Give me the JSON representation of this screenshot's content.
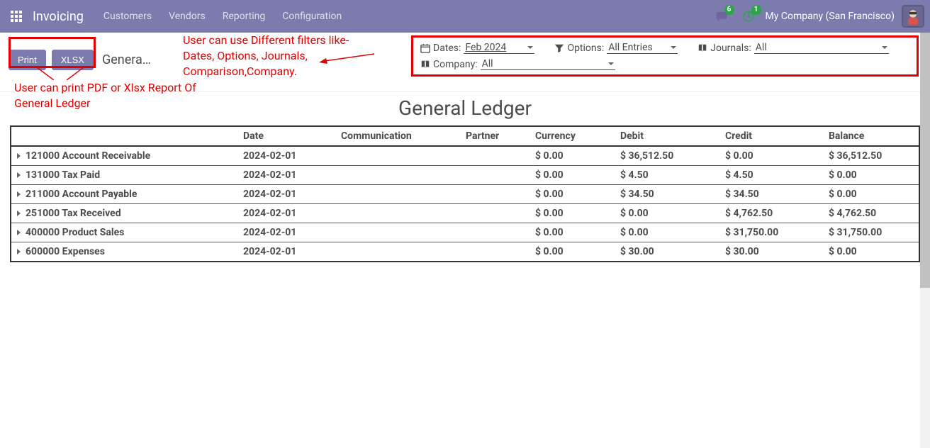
{
  "nav": {
    "brand": "Invoicing",
    "items": [
      "Customers",
      "Vendors",
      "Reporting",
      "Configuration"
    ],
    "chat_count": "6",
    "activity_count": "1",
    "company": "My Company (San Francisco)"
  },
  "buttons": {
    "print": "Print",
    "xlsx": "XLSX"
  },
  "breadcrumb": "Genera…",
  "filters": {
    "dates_label": "Dates:",
    "dates_value": "Feb 2024",
    "options_label": "Options:",
    "options_value": "All Entries",
    "journals_label": "Journals:",
    "journals_value": "All",
    "company_label": "Company:",
    "company_value": "All"
  },
  "annotations": {
    "print": "User can print PDF or Xlsx Report Of General Ledger",
    "filters": "User can use Different filters like- Dates, Options, Journals, Comparison,Company.",
    "color": "#e00000"
  },
  "report": {
    "title": "General Ledger",
    "columns": [
      "",
      "Date",
      "Communication",
      "Partner",
      "Currency",
      "Debit",
      "Credit",
      "Balance"
    ],
    "rows": [
      {
        "account": "121000 Account Receivable",
        "date": "2024-02-01",
        "currency": "$ 0.00",
        "debit": "$ 36,512.50",
        "credit": "$ 0.00",
        "balance": "$ 36,512.50"
      },
      {
        "account": "131000 Tax Paid",
        "date": "2024-02-01",
        "currency": "$ 0.00",
        "debit": "$ 4.50",
        "credit": "$ 4.50",
        "balance": "$ 0.00"
      },
      {
        "account": "211000 Account Payable",
        "date": "2024-02-01",
        "currency": "$ 0.00",
        "debit": "$ 34.50",
        "credit": "$ 34.50",
        "balance": "$ 0.00"
      },
      {
        "account": "251000 Tax Received",
        "date": "2024-02-01",
        "currency": "$ 0.00",
        "debit": "$ 0.00",
        "credit": "$ 4,762.50",
        "balance": "$ 4,762.50"
      },
      {
        "account": "400000 Product Sales",
        "date": "2024-02-01",
        "currency": "$ 0.00",
        "debit": "$ 0.00",
        "credit": "$ 31,750.00",
        "balance": "$ 31,750.00"
      },
      {
        "account": "600000 Expenses",
        "date": "2024-02-01",
        "currency": "$ 0.00",
        "debit": "$ 30.00",
        "credit": "$ 30.00",
        "balance": "$ 0.00"
      }
    ]
  },
  "colors": {
    "primary": "#7c7bad",
    "badge": "#28a745",
    "annotation": "#e00000"
  }
}
